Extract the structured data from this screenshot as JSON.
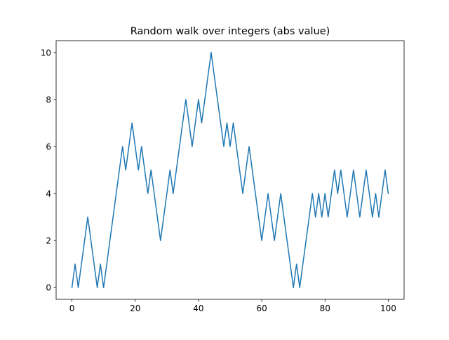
{
  "chart_data": {
    "type": "line",
    "title": "Random walk over integers (abs value)",
    "xlabel": "",
    "ylabel": "",
    "xlim": [
      -5,
      105
    ],
    "ylim": [
      -0.5,
      10.5
    ],
    "xticks": [
      0,
      20,
      40,
      60,
      80,
      100
    ],
    "yticks": [
      0,
      2,
      4,
      6,
      8,
      10
    ],
    "grid": false,
    "legend": "none",
    "series": [
      {
        "color": "#1f77b4",
        "x": [
          0,
          1,
          2,
          3,
          4,
          5,
          6,
          7,
          8,
          9,
          10,
          11,
          12,
          13,
          14,
          15,
          16,
          17,
          18,
          19,
          20,
          21,
          22,
          23,
          24,
          25,
          26,
          27,
          28,
          29,
          30,
          31,
          32,
          33,
          34,
          35,
          36,
          37,
          38,
          39,
          40,
          41,
          42,
          43,
          44,
          45,
          46,
          47,
          48,
          49,
          50,
          51,
          52,
          53,
          54,
          55,
          56,
          57,
          58,
          59,
          60,
          61,
          62,
          63,
          64,
          65,
          66,
          67,
          68,
          69,
          70,
          71,
          72,
          73,
          74,
          75,
          76,
          77,
          78,
          79,
          80,
          81,
          82,
          83,
          84,
          85,
          86,
          87,
          88,
          89,
          90,
          91,
          92,
          93,
          94,
          95,
          96,
          97,
          98,
          99,
          100
        ],
        "y": [
          0,
          1,
          0,
          1,
          2,
          3,
          2,
          1,
          0,
          1,
          0,
          1,
          2,
          3,
          4,
          5,
          6,
          5,
          6,
          7,
          6,
          5,
          6,
          5,
          4,
          5,
          4,
          3,
          2,
          3,
          4,
          5,
          4,
          5,
          6,
          7,
          8,
          7,
          6,
          7,
          8,
          7,
          8,
          9,
          10,
          9,
          8,
          7,
          6,
          7,
          6,
          7,
          6,
          5,
          4,
          5,
          6,
          5,
          4,
          3,
          2,
          3,
          4,
          3,
          2,
          3,
          4,
          3,
          2,
          1,
          0,
          1,
          0,
          1,
          2,
          3,
          4,
          3,
          4,
          3,
          4,
          3,
          4,
          5,
          4,
          5,
          4,
          3,
          4,
          5,
          4,
          3,
          4,
          5,
          4,
          3,
          4,
          3,
          4,
          5,
          4
        ]
      }
    ]
  }
}
